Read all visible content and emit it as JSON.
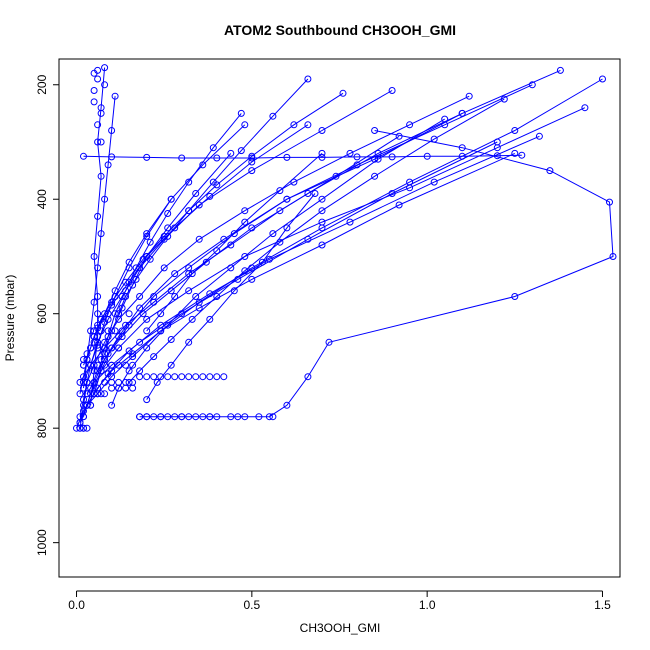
{
  "chart_data": {
    "type": "line",
    "title": "ATOM2 Southbound CH3OOH_GMI",
    "xlabel": "CH3OOH_GMI",
    "ylabel": "Pressure (mbar)",
    "xlim": [
      -0.05,
      1.55
    ],
    "ylim": [
      1060,
      155
    ],
    "y_reversed": true,
    "x_ticks": [
      {
        "value": 0.0,
        "label": "0.0"
      },
      {
        "value": 0.5,
        "label": "0.5"
      },
      {
        "value": 1.0,
        "label": "1.0"
      },
      {
        "value": 1.5,
        "label": "1.5"
      }
    ],
    "y_ticks": [
      {
        "value": 200,
        "label": "200"
      },
      {
        "value": 400,
        "label": "400"
      },
      {
        "value": 600,
        "label": "600"
      },
      {
        "value": 800,
        "label": "800"
      },
      {
        "value": 1000,
        "label": "1000"
      }
    ],
    "grid": false,
    "legend": "none",
    "series_color": "#0000ff",
    "marker": "open-circle",
    "series": [
      {
        "x": [
          0.01,
          0.02,
          0.03,
          0.05,
          0.08,
          0.12,
          0.18,
          0.25,
          0.35,
          0.48,
          0.62,
          0.78,
          0.95,
          1.12
        ],
        "y": [
          800,
          760,
          720,
          690,
          650,
          610,
          570,
          520,
          470,
          420,
          370,
          320,
          270,
          220
        ]
      },
      {
        "x": [
          0.02,
          0.04,
          0.07,
          0.12,
          0.2,
          0.32,
          0.48,
          0.7,
          0.95,
          1.2,
          1.45
        ],
        "y": [
          780,
          740,
          700,
          660,
          610,
          560,
          500,
          440,
          380,
          310,
          240
        ]
      },
      {
        "x": [
          0.01,
          0.03,
          0.06,
          0.1,
          0.16,
          0.24,
          0.35,
          0.5,
          0.7,
          0.92,
          1.25
        ],
        "y": [
          790,
          760,
          730,
          700,
          670,
          630,
          590,
          540,
          480,
          410,
          320
        ]
      },
      {
        "x": [
          0.18,
          0.2,
          0.24,
          0.3,
          0.38,
          0.46,
          0.55,
          0.6,
          0.66,
          0.72,
          1.25,
          1.53,
          1.52,
          1.35,
          1.1,
          0.85
        ],
        "y": [
          780,
          780,
          780,
          780,
          780,
          780,
          780,
          760,
          710,
          650,
          570,
          500,
          405,
          350,
          310,
          280
        ]
      },
      {
        "x": [
          0.05,
          0.07,
          0.1,
          0.15,
          0.22,
          0.32,
          0.45,
          0.6,
          0.8,
          1.05,
          1.3
        ],
        "y": [
          740,
          700,
          660,
          620,
          570,
          520,
          460,
          400,
          340,
          270,
          200
        ]
      },
      {
        "x": [
          0.02,
          0.04,
          0.06,
          0.09,
          0.13,
          0.18,
          0.25,
          0.35,
          0.5,
          0.7,
          0.9
        ],
        "y": [
          720,
          690,
          650,
          610,
          570,
          520,
          470,
          410,
          350,
          280,
          210
        ]
      },
      {
        "x": [
          0.03,
          0.05,
          0.08,
          0.12,
          0.18,
          0.28,
          0.42,
          0.6,
          0.85,
          1.1
        ],
        "y": [
          760,
          720,
          680,
          640,
          590,
          530,
          470,
          400,
          330,
          250
        ]
      },
      {
        "x": [
          0.0,
          0.02,
          0.05,
          0.09,
          0.15,
          0.24,
          0.38,
          0.55,
          0.78,
          1.02,
          1.32
        ],
        "y": [
          800,
          770,
          740,
          705,
          665,
          620,
          565,
          505,
          440,
          370,
          290
        ]
      },
      {
        "x": [
          0.04,
          0.06,
          0.08,
          0.1,
          0.13,
          0.16,
          0.2,
          0.26,
          0.34,
          0.44
        ],
        "y": [
          730,
          700,
          670,
          630,
          590,
          550,
          500,
          450,
          390,
          320
        ]
      },
      {
        "x": [
          0.01,
          0.02,
          0.03,
          0.05,
          0.08,
          0.11,
          0.15,
          0.2,
          0.27,
          0.36,
          0.48
        ],
        "y": [
          740,
          710,
          680,
          640,
          600,
          560,
          510,
          460,
          400,
          340,
          270
        ]
      },
      {
        "x": [
          0.06,
          0.09,
          0.13,
          0.19,
          0.27,
          0.37,
          0.5,
          0.66,
          0.86,
          1.1,
          1.38
        ],
        "y": [
          700,
          670,
          640,
          600,
          560,
          510,
          450,
          390,
          320,
          250,
          175
        ]
      },
      {
        "x": [
          0.02,
          0.03,
          0.04,
          0.05,
          0.06,
          0.07,
          0.08,
          0.09,
          0.1,
          0.11
        ],
        "y": [
          730,
          680,
          630,
          580,
          520,
          460,
          400,
          340,
          280,
          220
        ]
      },
      {
        "x": [
          0.04,
          0.05,
          0.06,
          0.06,
          0.05,
          0.06,
          0.07,
          0.06,
          0.07,
          0.08
        ],
        "y": [
          760,
          700,
          640,
          570,
          500,
          430,
          360,
          300,
          240,
          170
        ]
      },
      {
        "x": [
          0.01,
          0.04,
          0.08,
          0.14,
          0.22,
          0.32,
          0.44,
          0.58,
          0.74,
          0.92
        ],
        "y": [
          720,
          690,
          660,
          620,
          580,
          530,
          480,
          420,
          360,
          290
        ]
      },
      {
        "x": [
          0.1,
          0.12,
          0.15,
          0.2,
          0.26,
          0.34,
          0.44,
          0.56,
          0.7,
          0.86,
          1.05
        ],
        "y": [
          760,
          730,
          700,
          660,
          620,
          570,
          520,
          460,
          400,
          330,
          260
        ]
      },
      {
        "x": [
          0.02,
          0.04,
          0.06,
          0.1,
          0.15,
          0.2,
          0.28,
          0.38,
          0.5,
          0.66
        ],
        "y": [
          690,
          660,
          625,
          585,
          545,
          500,
          450,
          395,
          335,
          270
        ]
      },
      {
        "x": [
          0.03,
          0.05,
          0.1,
          0.18,
          0.3,
          0.46,
          0.66,
          0.9,
          1.2
        ],
        "y": [
          740,
          720,
          690,
          650,
          600,
          540,
          470,
          390,
          300
        ]
      },
      {
        "x": [
          0.02,
          0.1,
          0.2,
          0.3,
          0.4,
          0.5,
          0.6,
          0.7,
          0.8,
          0.9,
          1.0,
          1.1,
          1.2,
          1.27
        ],
        "y": [
          325,
          326,
          327,
          328,
          328,
          328,
          327,
          327,
          326,
          326,
          325,
          325,
          324,
          323
        ]
      },
      {
        "x": [
          0.2,
          0.23,
          0.27,
          0.32,
          0.38,
          0.45,
          0.53,
          0.6,
          0.68
        ],
        "y": [
          750,
          720,
          690,
          650,
          610,
          560,
          510,
          450,
          390
        ]
      },
      {
        "x": [
          0.05,
          0.07,
          0.1,
          0.14,
          0.19,
          0.25,
          0.32,
          0.4,
          0.5,
          0.62,
          0.76
        ],
        "y": [
          640,
          610,
          580,
          545,
          505,
          465,
          420,
          375,
          325,
          270,
          215
        ]
      },
      {
        "x": [
          0.01,
          0.02,
          0.03,
          0.04,
          0.06,
          0.08,
          0.11,
          0.15,
          0.2,
          0.27
        ],
        "y": [
          780,
          750,
          720,
          690,
          655,
          615,
          570,
          520,
          465,
          400
        ]
      },
      {
        "x": [
          0.15,
          0.18,
          0.22,
          0.27,
          0.33,
          0.4,
          0.48,
          0.58,
          0.7,
          0.85,
          1.02,
          1.22
        ],
        "y": [
          720,
          700,
          675,
          645,
          610,
          570,
          525,
          475,
          420,
          360,
          295,
          225
        ]
      },
      {
        "x": [
          0.07,
          0.09,
          0.11,
          0.14,
          0.17,
          0.21,
          0.26,
          0.32,
          0.39,
          0.47
        ],
        "y": [
          680,
          640,
          600,
          560,
          520,
          475,
          425,
          370,
          310,
          250
        ]
      },
      {
        "x": [
          0.03,
          0.06,
          0.1,
          0.16,
          0.24,
          0.35,
          0.5,
          0.7,
          0.95,
          1.25,
          1.5
        ],
        "y": [
          760,
          740,
          710,
          675,
          630,
          580,
          520,
          450,
          370,
          280,
          190
        ]
      },
      {
        "x": [
          0.2,
          0.24,
          0.28,
          0.33,
          0.4,
          0.48,
          0.58,
          0.7
        ],
        "y": [
          630,
          600,
          570,
          530,
          490,
          440,
          385,
          320
        ]
      },
      {
        "x": [
          0.12,
          0.14,
          0.17,
          0.21,
          0.26,
          0.32,
          0.39,
          0.47,
          0.56,
          0.66
        ],
        "y": [
          600,
          570,
          540,
          505,
          465,
          420,
          370,
          315,
          255,
          190
        ]
      }
    ],
    "points": {
      "x": [
        0.01,
        0.02,
        0.02,
        0.01,
        0.03,
        0.02,
        0.04,
        0.05,
        0.06,
        0.03,
        0.07,
        0.08,
        0.1,
        0.12,
        0.14,
        0.16,
        0.18,
        0.2,
        0.22,
        0.24,
        0.26,
        0.28,
        0.3,
        0.32,
        0.34,
        0.36,
        0.38,
        0.4,
        0.42,
        0.18,
        0.2,
        0.22,
        0.24,
        0.26,
        0.28,
        0.3,
        0.32,
        0.34,
        0.36,
        0.38,
        0.4,
        0.44,
        0.48,
        0.52,
        0.56,
        0.08,
        0.1,
        0.12,
        0.14,
        0.16,
        0.02,
        0.04,
        0.06,
        0.08,
        0.1,
        0.12,
        0.14,
        0.16,
        0.04,
        0.06,
        0.08,
        0.1,
        0.12,
        0.05,
        0.07,
        0.09,
        0.11,
        0.13,
        0.06,
        0.09,
        0.12,
        0.15,
        0.02,
        0.03,
        0.05,
        0.06,
        0.05,
        0.06,
        0.06,
        0.05,
        0.07,
        0.06,
        0.07,
        0.05,
        0.08
      ],
      "y": [
        800,
        800,
        800,
        790,
        800,
        780,
        760,
        740,
        740,
        740,
        740,
        740,
        730,
        730,
        730,
        730,
        710,
        710,
        710,
        710,
        710,
        710,
        710,
        710,
        710,
        710,
        710,
        710,
        710,
        780,
        780,
        780,
        780,
        780,
        780,
        780,
        780,
        780,
        780,
        780,
        780,
        780,
        780,
        780,
        780,
        720,
        720,
        720,
        720,
        720,
        690,
        690,
        690,
        690,
        690,
        690,
        690,
        690,
        660,
        660,
        660,
        660,
        660,
        630,
        630,
        630,
        630,
        630,
        600,
        600,
        600,
        600,
        680,
        670,
        650,
        620,
        210,
        190,
        175,
        230,
        250,
        270,
        300,
        180,
        200
      ]
    }
  }
}
